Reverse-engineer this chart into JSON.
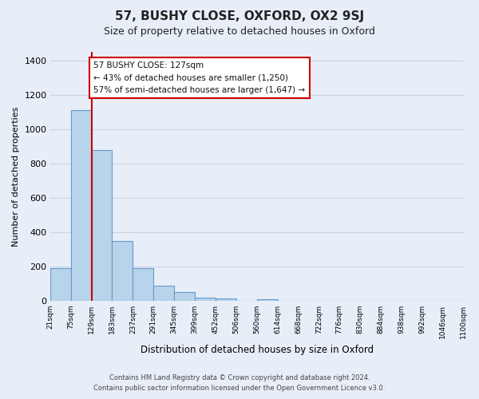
{
  "title": "57, BUSHY CLOSE, OXFORD, OX2 9SJ",
  "subtitle": "Size of property relative to detached houses in Oxford",
  "xlabel": "Distribution of detached houses by size in Oxford",
  "ylabel": "Number of detached properties",
  "bar_values": [
    193,
    1113,
    880,
    350,
    193,
    90,
    55,
    22,
    15,
    0,
    13,
    0,
    0,
    0,
    0,
    0,
    0,
    0,
    0,
    0
  ],
  "bin_labels": [
    "21sqm",
    "75sqm",
    "129sqm",
    "183sqm",
    "237sqm",
    "291sqm",
    "345sqm",
    "399sqm",
    "452sqm",
    "506sqm",
    "560sqm",
    "614sqm",
    "668sqm",
    "722sqm",
    "776sqm",
    "830sqm",
    "884sqm",
    "938sqm",
    "992sqm",
    "1046sqm",
    "1100sqm"
  ],
  "bar_color": "#b8d4ea",
  "bar_edge_color": "#6699cc",
  "vline_x": 2.0,
  "vline_color": "#cc0000",
  "ylim": [
    0,
    1450
  ],
  "yticks": [
    0,
    200,
    400,
    600,
    800,
    1000,
    1200,
    1400
  ],
  "annotation_title": "57 BUSHY CLOSE: 127sqm",
  "annotation_line1": "← 43% of detached houses are smaller (1,250)",
  "annotation_line2": "57% of semi-detached houses are larger (1,647) →",
  "annotation_box_color": "#ffffff",
  "annotation_box_edgecolor": "#cc0000",
  "footer_line1": "Contains HM Land Registry data © Crown copyright and database right 2024.",
  "footer_line2": "Contains public sector information licensed under the Open Government Licence v3.0.",
  "bg_color": "#e8eef8",
  "grid_color": "#c8d4e4",
  "fig_width": 6.0,
  "fig_height": 5.0
}
